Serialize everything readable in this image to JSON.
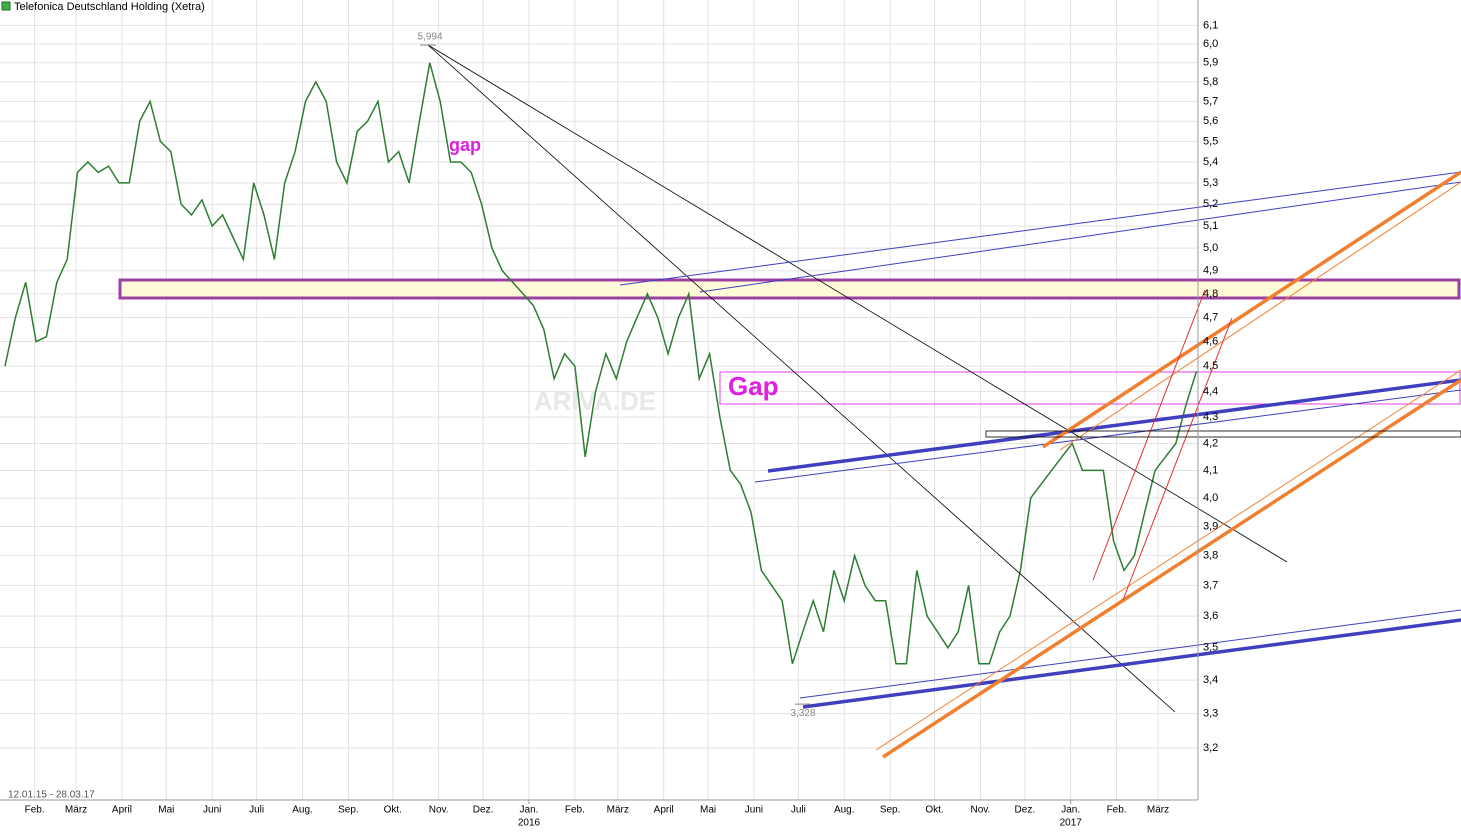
{
  "chart_data": {
    "type": "line",
    "title": "Telefonica Deutschland Holding (Xetra)",
    "date_range": "12.01.15 - 28.03.17",
    "watermark": "ARIVA.DE",
    "annotations": [
      "gap",
      "Gap"
    ],
    "high": {
      "value": 5.994,
      "label": "5,994"
    },
    "low": {
      "value": 3.328,
      "label": "3,328"
    },
    "log_scale": true,
    "grid": true,
    "color": "#2e7d32",
    "x": [
      "2015-01-12",
      "2015-01-19",
      "2015-01-26",
      "2015-02-02",
      "2015-02-09",
      "2015-02-16",
      "2015-02-23",
      "2015-03-02",
      "2015-03-09",
      "2015-03-16",
      "2015-03-23",
      "2015-03-30",
      "2015-04-06",
      "2015-04-13",
      "2015-04-20",
      "2015-04-27",
      "2015-05-04",
      "2015-05-11",
      "2015-05-18",
      "2015-05-25",
      "2015-06-01",
      "2015-06-08",
      "2015-06-15",
      "2015-06-22",
      "2015-06-29",
      "2015-07-06",
      "2015-07-13",
      "2015-07-20",
      "2015-07-27",
      "2015-08-03",
      "2015-08-10",
      "2015-08-17",
      "2015-08-24",
      "2015-08-31",
      "2015-09-07",
      "2015-09-14",
      "2015-09-21",
      "2015-09-28",
      "2015-10-05",
      "2015-10-12",
      "2015-10-19",
      "2015-10-26",
      "2015-11-02",
      "2015-11-09",
      "2015-11-16",
      "2015-11-23",
      "2015-11-30",
      "2015-12-07",
      "2015-12-14",
      "2015-12-21",
      "2015-12-28",
      "2016-01-04",
      "2016-01-11",
      "2016-01-18",
      "2016-01-25",
      "2016-02-01",
      "2016-02-08",
      "2016-02-15",
      "2016-02-22",
      "2016-02-29",
      "2016-03-07",
      "2016-03-14",
      "2016-03-21",
      "2016-03-28",
      "2016-04-04",
      "2016-04-11",
      "2016-04-18",
      "2016-04-25",
      "2016-05-02",
      "2016-05-09",
      "2016-05-16",
      "2016-05-23",
      "2016-05-30",
      "2016-06-06",
      "2016-06-13",
      "2016-06-20",
      "2016-06-27",
      "2016-07-04",
      "2016-07-11",
      "2016-07-18",
      "2016-07-25",
      "2016-08-01",
      "2016-08-08",
      "2016-08-15",
      "2016-08-22",
      "2016-08-29",
      "2016-09-05",
      "2016-09-12",
      "2016-09-19",
      "2016-09-26",
      "2016-10-03",
      "2016-10-10",
      "2016-10-17",
      "2016-10-24",
      "2016-10-31",
      "2016-11-07",
      "2016-11-14",
      "2016-11-21",
      "2016-11-28",
      "2016-12-05",
      "2016-12-12",
      "2016-12-19",
      "2016-12-26",
      "2017-01-02",
      "2017-01-09",
      "2017-01-16",
      "2017-01-23",
      "2017-01-30",
      "2017-02-06",
      "2017-02-13",
      "2017-02-20",
      "2017-02-27",
      "2017-03-06",
      "2017-03-13",
      "2017-03-20",
      "2017-03-27"
    ],
    "values": [
      4.5,
      4.7,
      4.85,
      4.6,
      4.62,
      4.85,
      4.95,
      5.35,
      5.4,
      5.35,
      5.38,
      5.3,
      5.3,
      5.6,
      5.7,
      5.5,
      5.45,
      5.2,
      5.15,
      5.22,
      5.1,
      5.15,
      5.05,
      4.95,
      5.3,
      5.15,
      4.95,
      5.3,
      5.45,
      5.7,
      5.8,
      5.7,
      5.4,
      5.3,
      5.55,
      5.6,
      5.7,
      5.4,
      5.45,
      5.3,
      5.6,
      5.9,
      5.7,
      5.4,
      5.4,
      5.35,
      5.2,
      5.0,
      4.9,
      4.85,
      4.8,
      4.75,
      4.65,
      4.45,
      4.55,
      4.5,
      4.15,
      4.4,
      4.55,
      4.45,
      4.6,
      4.7,
      4.8,
      4.7,
      4.55,
      4.7,
      4.8,
      4.45,
      4.55,
      4.3,
      4.1,
      4.05,
      3.95,
      3.75,
      3.7,
      3.65,
      3.45,
      3.55,
      3.65,
      3.55,
      3.75,
      3.65,
      3.8,
      3.7,
      3.65,
      3.65,
      3.45,
      3.45,
      3.75,
      3.6,
      3.55,
      3.5,
      3.55,
      3.7,
      3.45,
      3.45,
      3.55,
      3.6,
      3.75,
      4.0,
      4.05,
      4.1,
      4.15,
      4.2,
      4.1,
      4.1,
      4.1,
      3.85,
      3.75,
      3.8,
      3.95,
      4.1,
      4.15,
      4.2,
      4.35,
      4.48
    ],
    "xlim": [
      "2015-01-12",
      "2017-03-28"
    ],
    "xticks": [
      {
        "value": "2015-02-01",
        "label": "Feb."
      },
      {
        "value": "2015-03-01",
        "label": "März"
      },
      {
        "value": "2015-04-01",
        "label": "April"
      },
      {
        "value": "2015-05-01",
        "label": "Mai"
      },
      {
        "value": "2015-06-01",
        "label": "Juni"
      },
      {
        "value": "2015-07-01",
        "label": "Juli"
      },
      {
        "value": "2015-08-01",
        "label": "Aug."
      },
      {
        "value": "2015-09-01",
        "label": "Sep."
      },
      {
        "value": "2015-10-01",
        "label": "Okt."
      },
      {
        "value": "2015-11-01",
        "label": "Nov."
      },
      {
        "value": "2015-12-01",
        "label": "Dez."
      },
      {
        "value": "2016-01-01",
        "label": "Jan."
      },
      {
        "value": "2016-02-01",
        "label": "Feb."
      },
      {
        "value": "2016-03-01",
        "label": "März"
      },
      {
        "value": "2016-04-01",
        "label": "April"
      },
      {
        "value": "2016-05-01",
        "label": "Mai"
      },
      {
        "value": "2016-06-01",
        "label": "Juni"
      },
      {
        "value": "2016-07-01",
        "label": "Juli"
      },
      {
        "value": "2016-08-01",
        "label": "Aug."
      },
      {
        "value": "2016-09-01",
        "label": "Sep."
      },
      {
        "value": "2016-10-01",
        "label": "Okt."
      },
      {
        "value": "2016-11-01",
        "label": "Nov."
      },
      {
        "value": "2016-12-01",
        "label": "Dez."
      },
      {
        "value": "2017-01-01",
        "label": "Jan."
      },
      {
        "value": "2017-02-01",
        "label": "Feb."
      },
      {
        "value": "2017-03-01",
        "label": "März"
      }
    ],
    "year_ticks": [
      {
        "value": "2016-01-01",
        "label": "2016"
      },
      {
        "value": "2017-01-01",
        "label": "2017"
      }
    ],
    "ylim": [
      3.055,
      6.24
    ],
    "yticks": [
      {
        "value": 3.2,
        "label": "3,2"
      },
      {
        "value": 3.3,
        "label": "3,3"
      },
      {
        "value": 3.4,
        "label": "3,4"
      },
      {
        "value": 3.5,
        "label": "3,5"
      },
      {
        "value": 3.6,
        "label": "3,6"
      },
      {
        "value": 3.7,
        "label": "3,7"
      },
      {
        "value": 3.8,
        "label": "3,8"
      },
      {
        "value": 3.9,
        "label": "3,9"
      },
      {
        "value": 4.0,
        "label": "4,0"
      },
      {
        "value": 4.1,
        "label": "4,1"
      },
      {
        "value": 4.2,
        "label": "4,2"
      },
      {
        "value": 4.3,
        "label": "4,3"
      },
      {
        "value": 4.4,
        "label": "4,4"
      },
      {
        "value": 4.5,
        "label": "4,5"
      },
      {
        "value": 4.6,
        "label": "4,6"
      },
      {
        "value": 4.7,
        "label": "4,7"
      },
      {
        "value": 4.8,
        "label": "4,8"
      },
      {
        "value": 4.9,
        "label": "4,9"
      },
      {
        "value": 5.0,
        "label": "5,0"
      },
      {
        "value": 5.1,
        "label": "5,1"
      },
      {
        "value": 5.2,
        "label": "5,2"
      },
      {
        "value": 5.3,
        "label": "5,3"
      },
      {
        "value": 5.4,
        "label": "5,4"
      },
      {
        "value": 5.5,
        "label": "5,5"
      },
      {
        "value": 5.6,
        "label": "5,6"
      },
      {
        "value": 5.7,
        "label": "5,7"
      },
      {
        "value": 5.8,
        "label": "5,8"
      },
      {
        "value": 5.9,
        "label": "5,9"
      },
      {
        "value": 6.0,
        "label": "6,0"
      },
      {
        "value": 6.1,
        "label": "6,1"
      }
    ]
  }
}
